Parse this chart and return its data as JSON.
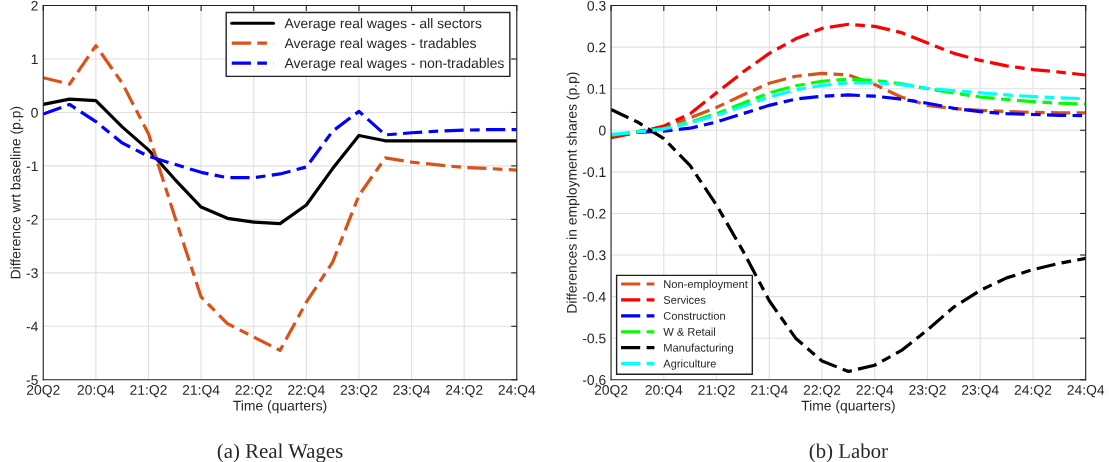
{
  "chart_data": [
    {
      "type": "line",
      "title": "(a) Real Wages",
      "xlabel": "Time (quarters)",
      "ylabel": "Difference wrt baseline (p.p)",
      "categories": [
        "20Q2",
        null,
        "20:Q4",
        null,
        "21:Q2",
        null,
        "21:Q4",
        null,
        "22:Q2",
        null,
        "22:Q4",
        null,
        "23:Q2",
        null,
        "23:Q4",
        null,
        "24:Q2",
        null,
        "24:Q4"
      ],
      "ylim": [
        -5,
        2
      ],
      "yticks": [
        -5,
        -4,
        -3,
        -2,
        -1,
        0,
        1,
        2
      ],
      "grid": true,
      "legend": "top right",
      "series": [
        {
          "name": "Average real wages - all sectors",
          "color": "#000000",
          "line_style": "solid",
          "values": [
            0.15,
            0.25,
            0.22,
            -0.27,
            -0.7,
            -1.25,
            -1.77,
            -1.98,
            -2.05,
            -2.08,
            -1.73,
            -1.05,
            -0.43,
            -0.53,
            -0.53,
            -0.53,
            -0.53,
            -0.53,
            -0.53
          ]
        },
        {
          "name": "Average real wages - tradables",
          "color": "#d95319",
          "line_style": "dashed",
          "values": [
            0.65,
            0.53,
            1.25,
            0.55,
            -0.4,
            -1.95,
            -3.45,
            -3.95,
            -4.2,
            -4.45,
            -3.55,
            -2.8,
            -1.55,
            -0.85,
            -0.93,
            -0.98,
            -1.03,
            -1.05,
            -1.08
          ]
        },
        {
          "name": "Average real wages - non-tradables",
          "color": "#0000ff",
          "line_style": "dashed",
          "values": [
            -0.03,
            0.15,
            -0.17,
            -0.57,
            -0.82,
            -0.97,
            -1.12,
            -1.22,
            -1.22,
            -1.15,
            -1.02,
            -0.35,
            0.02,
            -0.42,
            -0.38,
            -0.35,
            -0.33,
            -0.32,
            -0.32
          ]
        }
      ]
    },
    {
      "type": "line",
      "title": "(b) Labor",
      "xlabel": "Time (quarters)",
      "ylabel": "Differences in employment shares (p.p)",
      "categories": [
        "20Q2",
        null,
        "20:Q4",
        null,
        "21:Q2",
        null,
        "21:Q4",
        null,
        "22:Q2",
        null,
        "22:Q4",
        null,
        "23:Q2",
        null,
        "23:Q4",
        null,
        "24:Q2",
        null,
        "24:Q4"
      ],
      "ylim": [
        -0.6,
        0.3
      ],
      "yticks": [
        -0.6,
        -0.5,
        -0.4,
        -0.3,
        -0.2,
        -0.1,
        0,
        0.1,
        0.2,
        0.3
      ],
      "grid": true,
      "legend": "bottom left",
      "series": [
        {
          "name": "Non-employment",
          "color": "#d95319",
          "line_style": "dashed",
          "values": [
            -0.015,
            -0.003,
            0.008,
            0.03,
            0.055,
            0.085,
            0.113,
            0.13,
            0.137,
            0.133,
            0.11,
            0.08,
            0.06,
            0.052,
            0.048,
            0.045,
            0.043,
            0.042,
            0.042
          ]
        },
        {
          "name": "Services",
          "color": "#ff0000",
          "line_style": "dashed",
          "values": [
            -0.018,
            -0.005,
            0.01,
            0.04,
            0.09,
            0.14,
            0.185,
            0.22,
            0.245,
            0.255,
            0.25,
            0.235,
            0.21,
            0.185,
            0.168,
            0.155,
            0.146,
            0.14,
            0.133
          ]
        },
        {
          "name": "Construction",
          "color": "#0000ff",
          "line_style": "dashed",
          "values": [
            null,
            -0.005,
            -0.002,
            0.005,
            0.02,
            0.04,
            0.06,
            0.075,
            0.082,
            0.085,
            0.082,
            0.075,
            0.065,
            0.053,
            0.045,
            0.04,
            0.038,
            0.036,
            0.035
          ]
        },
        {
          "name": "W & Retail",
          "color": "#00ff00",
          "line_style": "dashed",
          "values": [
            -0.012,
            -0.004,
            0.004,
            0.02,
            0.04,
            0.065,
            0.09,
            0.107,
            0.118,
            0.123,
            0.12,
            0.112,
            0.1,
            0.09,
            0.08,
            0.074,
            0.069,
            0.065,
            0.063
          ]
        },
        {
          "name": "Manufacturing",
          "color": "#000000",
          "line_style": "dashed",
          "values": [
            0.05,
            0.02,
            -0.02,
            -0.085,
            -0.18,
            -0.29,
            -0.41,
            -0.5,
            -0.555,
            -0.58,
            -0.565,
            -0.53,
            -0.48,
            -0.425,
            -0.385,
            -0.355,
            -0.335,
            -0.32,
            -0.308
          ]
        },
        {
          "name": "Agriculture",
          "color": "#00ffff",
          "line_style": "dashed",
          "values": [
            -0.01,
            -0.004,
            0.003,
            0.018,
            0.036,
            0.058,
            0.08,
            0.097,
            0.108,
            0.114,
            0.114,
            0.11,
            0.101,
            0.095,
            0.09,
            0.085,
            0.081,
            0.078,
            0.076
          ]
        }
      ]
    }
  ]
}
